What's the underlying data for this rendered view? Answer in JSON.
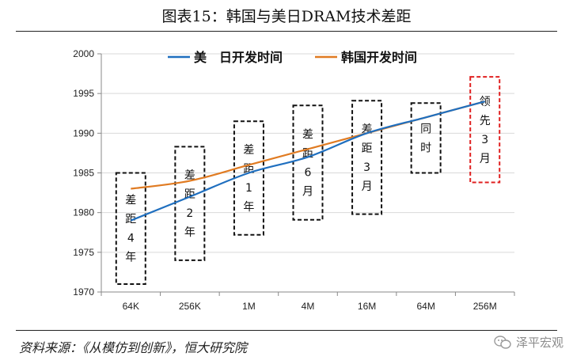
{
  "header": {
    "title": "图表15：韩国与美日DRAM技术差距"
  },
  "footer": {
    "source": "资料来源：《从模仿到创新》，恒大研究院",
    "watermark": "泽平宏观"
  },
  "colors": {
    "series_us_jp": "#1f6fbf",
    "series_korea": "#e07b22",
    "box_black": "#111111",
    "box_red": "#e02020"
  },
  "chart_data": {
    "type": "line",
    "categories": [
      "64K",
      "256K",
      "1M",
      "4M",
      "16M",
      "64M",
      "256M"
    ],
    "ylim": [
      1970,
      2000
    ],
    "yticks": [
      1970,
      1975,
      1980,
      1985,
      1990,
      1995,
      2000
    ],
    "xlabel": "",
    "ylabel": "",
    "legend_position": "top",
    "series": [
      {
        "name": "美　日开发时间",
        "color": "#1f6fbf",
        "values": [
          1979,
          1982,
          1985,
          1987,
          1990,
          1992,
          1994
        ]
      },
      {
        "name": "韩国开发时间",
        "color": "#e07b22",
        "values": [
          1983,
          1984,
          1986,
          1988,
          1990,
          1992,
          1994
        ]
      }
    ],
    "annotations": [
      {
        "category": "64K",
        "text": "差距4年",
        "style": "black",
        "y_range": [
          1971,
          1985
        ]
      },
      {
        "category": "256K",
        "text": "差距2年",
        "style": "black",
        "y_range": [
          1974,
          1988.3
        ]
      },
      {
        "category": "1M",
        "text": "差距1年",
        "style": "black",
        "y_range": [
          1977.2,
          1991.5
        ]
      },
      {
        "category": "4M",
        "text": "差距6月",
        "style": "black",
        "y_range": [
          1979.1,
          1993.5
        ]
      },
      {
        "category": "16M",
        "text": "差距3月",
        "style": "black",
        "y_range": [
          1979.8,
          1994.1
        ]
      },
      {
        "category": "64M",
        "text": "同时",
        "style": "black",
        "y_range": [
          1985,
          1993.8
        ]
      },
      {
        "category": "256M",
        "text": "领先3月",
        "style": "red",
        "y_range": [
          1983.8,
          1997.1
        ]
      }
    ]
  }
}
